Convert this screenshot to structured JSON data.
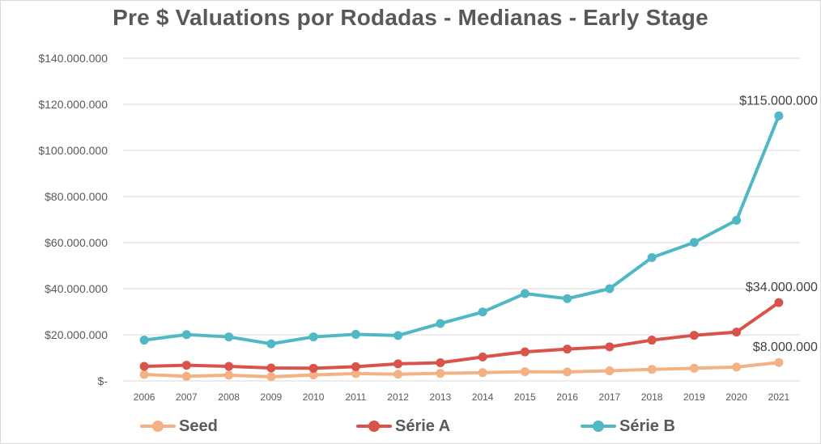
{
  "chart_data": {
    "type": "line",
    "title": "Pre $ Valuations por Rodadas - Medianas - Early Stage",
    "xlabel": "",
    "ylabel": "",
    "categories": [
      "2006",
      "2007",
      "2008",
      "2009",
      "2010",
      "2011",
      "2012",
      "2013",
      "2014",
      "2015",
      "2016",
      "2017",
      "2018",
      "2019",
      "2020",
      "2021"
    ],
    "ylim": [
      0,
      140000000
    ],
    "yticks": [
      0,
      20000000,
      40000000,
      60000000,
      80000000,
      100000000,
      120000000,
      140000000
    ],
    "ytick_labels": [
      "$-",
      "$20.000.000",
      "$40.000.000",
      "$60.000.000",
      "$80.000.000",
      "$100.000.000",
      "$120.000.000",
      "$140.000.000"
    ],
    "grid": true,
    "legend_position": "bottom",
    "series": [
      {
        "name": "Seed",
        "color": "#f4b183",
        "values": [
          2800000,
          2000000,
          2500000,
          1800000,
          2600000,
          3200000,
          2900000,
          3300000,
          3600000,
          4000000,
          3900000,
          4400000,
          5000000,
          5500000,
          6000000,
          8000000
        ]
      },
      {
        "name": "Série A",
        "color": "#d9534a",
        "values": [
          6300000,
          6800000,
          6300000,
          5600000,
          5500000,
          6200000,
          7400000,
          7900000,
          10400000,
          12600000,
          13800000,
          14800000,
          17700000,
          19800000,
          21200000,
          34000000
        ]
      },
      {
        "name": "Série B",
        "color": "#4fb8c4",
        "values": [
          17700000,
          20100000,
          19100000,
          16100000,
          19100000,
          20200000,
          19700000,
          24900000,
          29900000,
          37900000,
          35700000,
          40000000,
          53500000,
          60100000,
          69700000,
          115000000
        ]
      }
    ],
    "annotations": [
      {
        "series": "Seed",
        "index": 15,
        "text": "$8.000.000"
      },
      {
        "series": "Série A",
        "index": 15,
        "text": "$34.000.000"
      },
      {
        "series": "Série B",
        "index": 15,
        "text": "$115.000.000"
      }
    ]
  }
}
